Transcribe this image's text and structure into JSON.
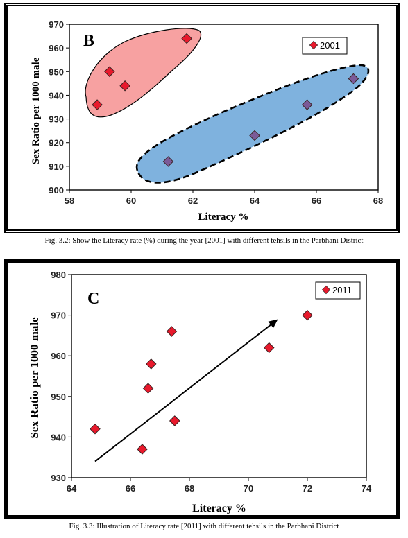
{
  "charts": {
    "b": {
      "panel_letter": "B",
      "legend": "2001",
      "xlabel": "Literacy %",
      "ylabel": "Sex Ratio per 1000 male",
      "caption": "Fig. 3.2: Show the Literacy rate (%) during the year [2001] with different tehsils in the Parbhani District",
      "colors": {
        "marker_fill": "#e8192c",
        "marker_fill_blue_group": "#7b5a98",
        "pink_region": "#f7a1a1",
        "blue_region": "#7fb2de"
      }
    },
    "c": {
      "panel_letter": "C",
      "legend": "2011",
      "xlabel": "Literacy %",
      "ylabel": "Sex Ratio per 1000 male",
      "caption": "Fig. 3.3: Illustration of Literacy rate [2011] with different tehsils in the Parbhani District",
      "colors": {
        "marker_fill": "#e8192c"
      }
    }
  },
  "chart_data": [
    {
      "type": "scatter",
      "series": [
        {
          "name": "2001",
          "x": [
            61.8,
            59.3,
            59.8,
            58.9,
            61.2,
            64.0,
            65.7,
            67.2
          ],
          "y": [
            964,
            950,
            944,
            936,
            912,
            923,
            936,
            947
          ],
          "groups": [
            "pink",
            "pink",
            "pink",
            "pink",
            "blue",
            "blue",
            "blue",
            "blue"
          ]
        }
      ],
      "xlim": [
        58,
        68
      ],
      "ylim": [
        900,
        970
      ],
      "xticks": [
        "58",
        "60",
        "62",
        "64",
        "66",
        "68"
      ],
      "yticks": [
        "900",
        "910",
        "920",
        "930",
        "940",
        "950",
        "960",
        "970"
      ],
      "xlabel": "Literacy %",
      "ylabel": "Sex Ratio per 1000 male",
      "legend_position": "top-right",
      "grid": false,
      "annotations": [
        "B"
      ]
    },
    {
      "type": "scatter",
      "series": [
        {
          "name": "2011",
          "x": [
            64.8,
            66.4,
            66.6,
            66.7,
            67.4,
            67.5,
            70.7,
            72.0
          ],
          "y": [
            942,
            937,
            952,
            958,
            966,
            944,
            962,
            970
          ]
        }
      ],
      "xlim": [
        64,
        74
      ],
      "ylim": [
        930,
        980
      ],
      "xticks": [
        "64",
        "66",
        "68",
        "70",
        "72",
        "74"
      ],
      "yticks": [
        "930",
        "940",
        "950",
        "960",
        "970",
        "980"
      ],
      "xlabel": "Literacy %",
      "ylabel": "Sex Ratio per 1000 male",
      "legend_position": "top-right",
      "grid": false,
      "annotations": [
        "C"
      ],
      "trend_arrow": {
        "from": [
          64.8,
          934
        ],
        "to": [
          71.0,
          969
        ]
      }
    }
  ]
}
